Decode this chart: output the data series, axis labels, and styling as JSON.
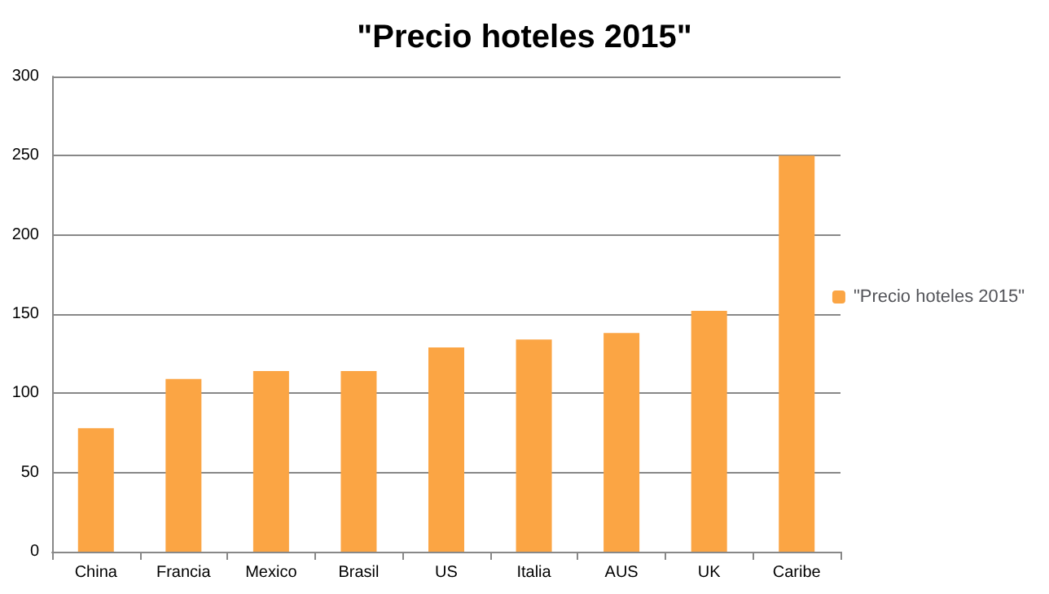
{
  "chart_data": {
    "type": "bar",
    "title": "\"Precio hoteles 2015\"",
    "categories": [
      "China",
      "Francia",
      "Mexico",
      "Brasil",
      "US",
      "Italia",
      "AUS",
      "UK",
      "Caribe"
    ],
    "series": [
      {
        "name": "\"Precio hoteles 2015\"",
        "color": "#fba544",
        "values": [
          78,
          109,
          114,
          114,
          129,
          134,
          138,
          152,
          250
        ]
      }
    ],
    "ylim": [
      0,
      300
    ],
    "yticks": [
      0,
      50,
      100,
      150,
      200,
      250,
      300
    ],
    "grid": "y",
    "legend": "right"
  }
}
